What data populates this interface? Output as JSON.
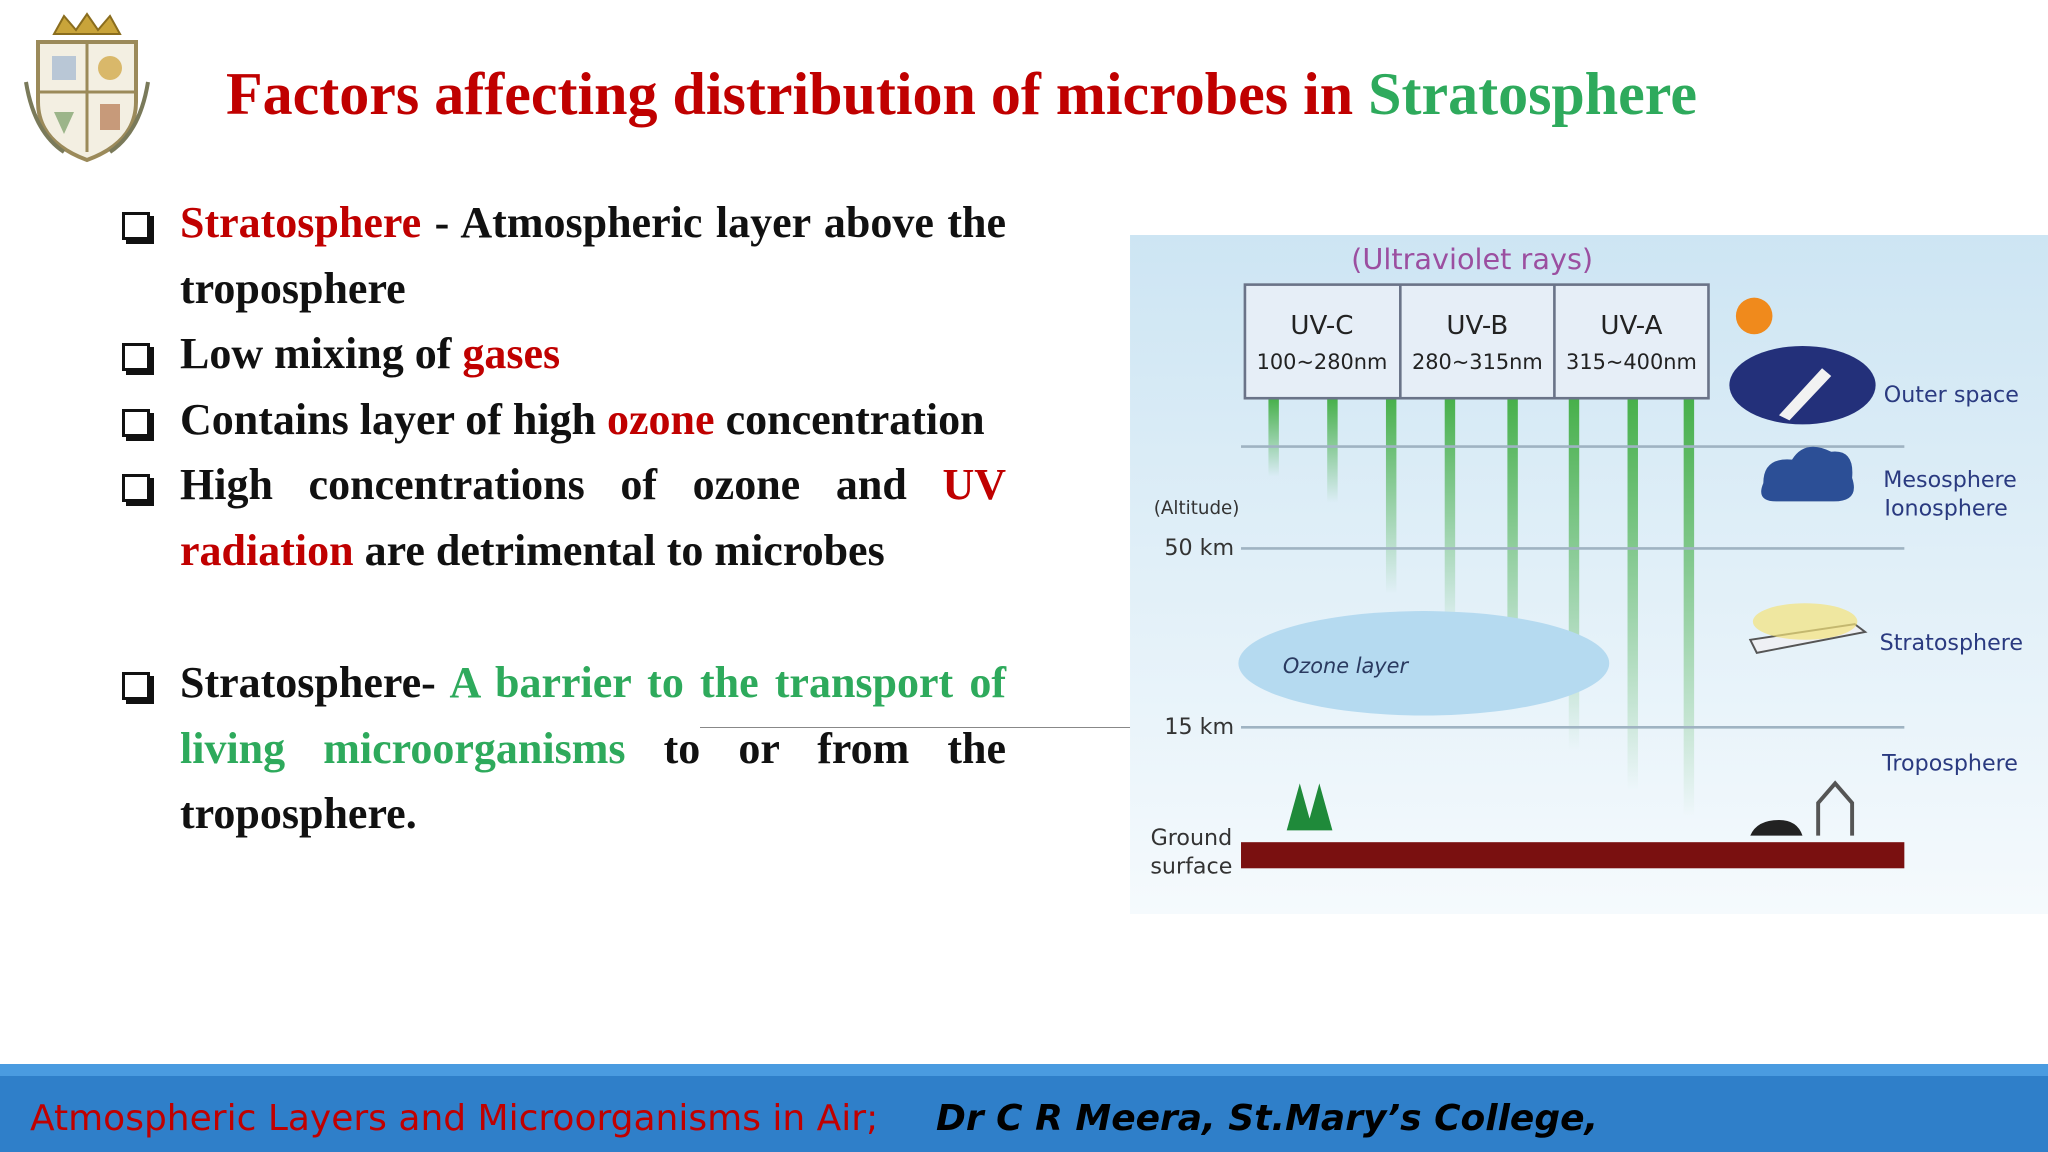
{
  "header": {
    "title": [
      "Factors affecting distribution of microbes in ",
      "Stratosphere"
    ]
  },
  "bullets": [
    [
      "Stratosphere",
      " - Atmospheric layer above the troposphere"
    ],
    [
      "Low mixing of ",
      "gases"
    ],
    [
      "Contains layer of high ",
      "ozone",
      " concentration"
    ],
    [
      "High concentrations of ozone and ",
      "UV radiation",
      " are detrimental to microbes"
    ],
    [
      "Stratosphere- ",
      "A barrier to the transport of living microorganisms",
      " to or from the troposphere."
    ]
  ],
  "diagram": {
    "heading": "(Ultraviolet rays)",
    "bands": [
      {
        "name": "UV-C",
        "range": "100~280nm"
      },
      {
        "name": "UV-B",
        "range": "280~315nm"
      },
      {
        "name": "UV-A",
        "range": "315~400nm"
      }
    ],
    "altitude": "(Altitude)",
    "km50": "50 km",
    "km15": "15 km",
    "ozone": "Ozone layer",
    "layers": [
      "Outer space",
      "Mesosphere",
      "Ionosphere",
      "Stratosphere",
      "Troposphere"
    ],
    "ground": [
      "Ground",
      "surface"
    ]
  },
  "footer": {
    "topic": "Atmospheric Layers and Microorganisms in Air;",
    "author": "Dr C R Meera, St.Mary’s College,"
  }
}
